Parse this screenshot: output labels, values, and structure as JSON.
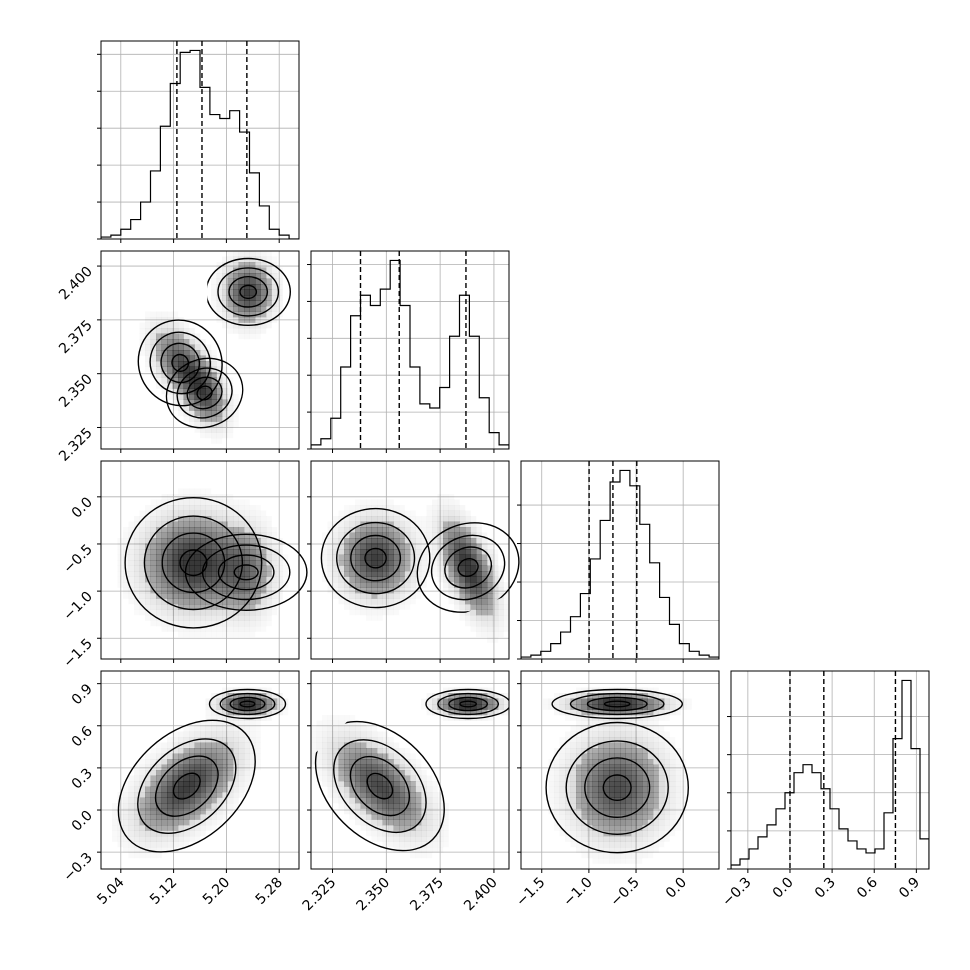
{
  "chart_data": {
    "type": "corner",
    "parameters": [
      "",
      "",
      "",
      ""
    ],
    "grid": true,
    "colors": {
      "lines": "#000000",
      "grid": "#b0b0b0",
      "density": "#000000",
      "background": "#ffffff"
    },
    "ranges": [
      [
        5.01,
        5.31
      ],
      [
        2.315,
        2.407
      ],
      [
        -1.72,
        0.38
      ],
      [
        -0.42,
        0.99
      ]
    ],
    "ticks": [
      {
        "values": [
          5.04,
          5.12,
          5.2,
          5.28
        ],
        "labels": [
          "5.04",
          "5.12",
          "5.20",
          "5.28"
        ]
      },
      {
        "values": [
          2.325,
          2.35,
          2.375,
          2.4
        ],
        "labels": [
          "2.325",
          "2.350",
          "2.375",
          "2.400"
        ]
      },
      {
        "values": [
          -1.5,
          -1.0,
          -0.5,
          0.0
        ],
        "labels": [
          "−1.5",
          "−1.0",
          "−0.5",
          "0.0"
        ]
      },
      {
        "values": [
          -0.3,
          0.0,
          0.3,
          0.6,
          0.9
        ],
        "labels": [
          "−0.3",
          "0.0",
          "0.3",
          "0.6",
          "0.9"
        ]
      }
    ],
    "quantiles": [
      [
        5.125,
        5.163,
        5.231
      ],
      [
        2.338,
        2.356,
        2.387
      ],
      [
        -0.998,
        -0.745,
        -0.492
      ],
      [
        0.0,
        0.241,
        0.751
      ]
    ],
    "histograms": [
      {
        "x0": 5.01,
        "x1": 5.31,
        "counts": [
          1,
          2,
          5,
          10,
          19,
          35,
          58,
          80,
          96,
          97,
          78,
          64,
          62,
          66,
          55,
          34,
          17,
          5,
          2,
          0
        ]
      },
      {
        "x0": 2.315,
        "x1": 2.407,
        "counts": [
          2,
          5,
          15,
          40,
          65,
          75,
          70,
          78,
          92,
          70,
          40,
          22,
          20,
          30,
          55,
          75,
          55,
          25,
          8,
          2
        ]
      },
      {
        "x0": -1.72,
        "x1": 0.38,
        "counts": [
          1,
          2,
          4,
          8,
          14,
          22,
          34,
          52,
          72,
          92,
          98,
          90,
          70,
          50,
          32,
          18,
          8,
          4,
          2,
          1
        ]
      },
      {
        "x0": -0.42,
        "x1": 0.99,
        "counts": [
          2,
          5,
          10,
          16,
          22,
          30,
          38,
          48,
          52,
          48,
          40,
          30,
          20,
          14,
          10,
          8,
          10,
          28,
          65,
          94,
          60,
          15
        ]
      }
    ],
    "modes": [
      {
        "pair": [
          0,
          1
        ],
        "blobs": [
          [
            5.13,
            2.355,
            0.025,
            0.01,
            -0.5,
            1.0
          ],
          [
            5.167,
            2.341,
            0.02,
            0.009,
            -0.4,
            1.0
          ],
          [
            5.233,
            2.388,
            0.022,
            0.0085,
            0.0,
            1.2
          ]
        ]
      },
      {
        "pair": [
          0,
          2
        ],
        "blobs": [
          [
            5.15,
            -0.7,
            0.045,
            0.3,
            0.0,
            1.1
          ],
          [
            5.23,
            -0.8,
            0.025,
            0.28,
            0.0,
            0.6
          ]
        ]
      },
      {
        "pair": [
          1,
          2
        ],
        "blobs": [
          [
            2.345,
            -0.65,
            0.01,
            0.25,
            0.0,
            1.0
          ],
          [
            2.388,
            -0.75,
            0.0075,
            0.3,
            -0.6,
            1.1
          ]
        ]
      },
      {
        "pair": [
          0,
          3
        ],
        "blobs": [
          [
            5.14,
            0.17,
            0.045,
            0.2,
            0.55,
            1.1
          ],
          [
            5.232,
            0.755,
            0.025,
            0.045,
            0.0,
            1.3
          ]
        ]
      },
      {
        "pair": [
          1,
          3
        ],
        "blobs": [
          [
            2.347,
            0.17,
            0.013,
            0.2,
            -0.6,
            1.0
          ],
          [
            2.388,
            0.755,
            0.0085,
            0.045,
            0.0,
            1.3
          ]
        ]
      },
      {
        "pair": [
          2,
          3
        ],
        "blobs": [
          [
            -0.7,
            0.16,
            0.3,
            0.22,
            0.0,
            1.0
          ],
          [
            -0.7,
            0.755,
            0.3,
            0.045,
            0.0,
            1.3
          ]
        ]
      }
    ]
  }
}
